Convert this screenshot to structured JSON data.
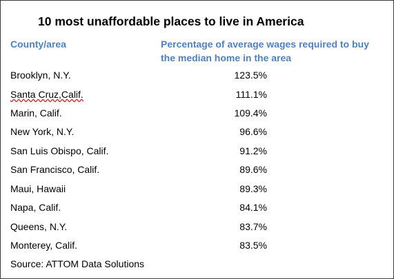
{
  "title": "10 most unaffordable places to live in America",
  "headers": {
    "county": "County/area",
    "percentage": "Percentage of average wages required to buy the median home in the area"
  },
  "rows": [
    {
      "county": "Brooklyn, N.Y.",
      "pct": "123.5%"
    },
    {
      "county": "Santa Cruz,Calif.",
      "pct": "111.1%"
    },
    {
      "county": "Marin, Calif.",
      "pct": "109.4%"
    },
    {
      "county": "New York, N.Y.",
      "pct": "96.6%"
    },
    {
      "county": "San Luis Obispo, Calif.",
      "pct": "91.2%"
    },
    {
      "county": "San Francisco, Calif.",
      "pct": "89.6%"
    },
    {
      "county": "Maui, Hawaii",
      "pct": "89.3%"
    },
    {
      "county": "Napa, Calif.",
      "pct": "84.1%"
    },
    {
      "county": "Queens, N.Y.",
      "pct": "83.7%"
    },
    {
      "county": "Monterey, Calif.",
      "pct": "83.5%"
    }
  ],
  "source": "Source: ATTOM Data Solutions",
  "colors": {
    "header": "#4f81bd",
    "text": "#000000",
    "border": "#3a3a3a"
  }
}
